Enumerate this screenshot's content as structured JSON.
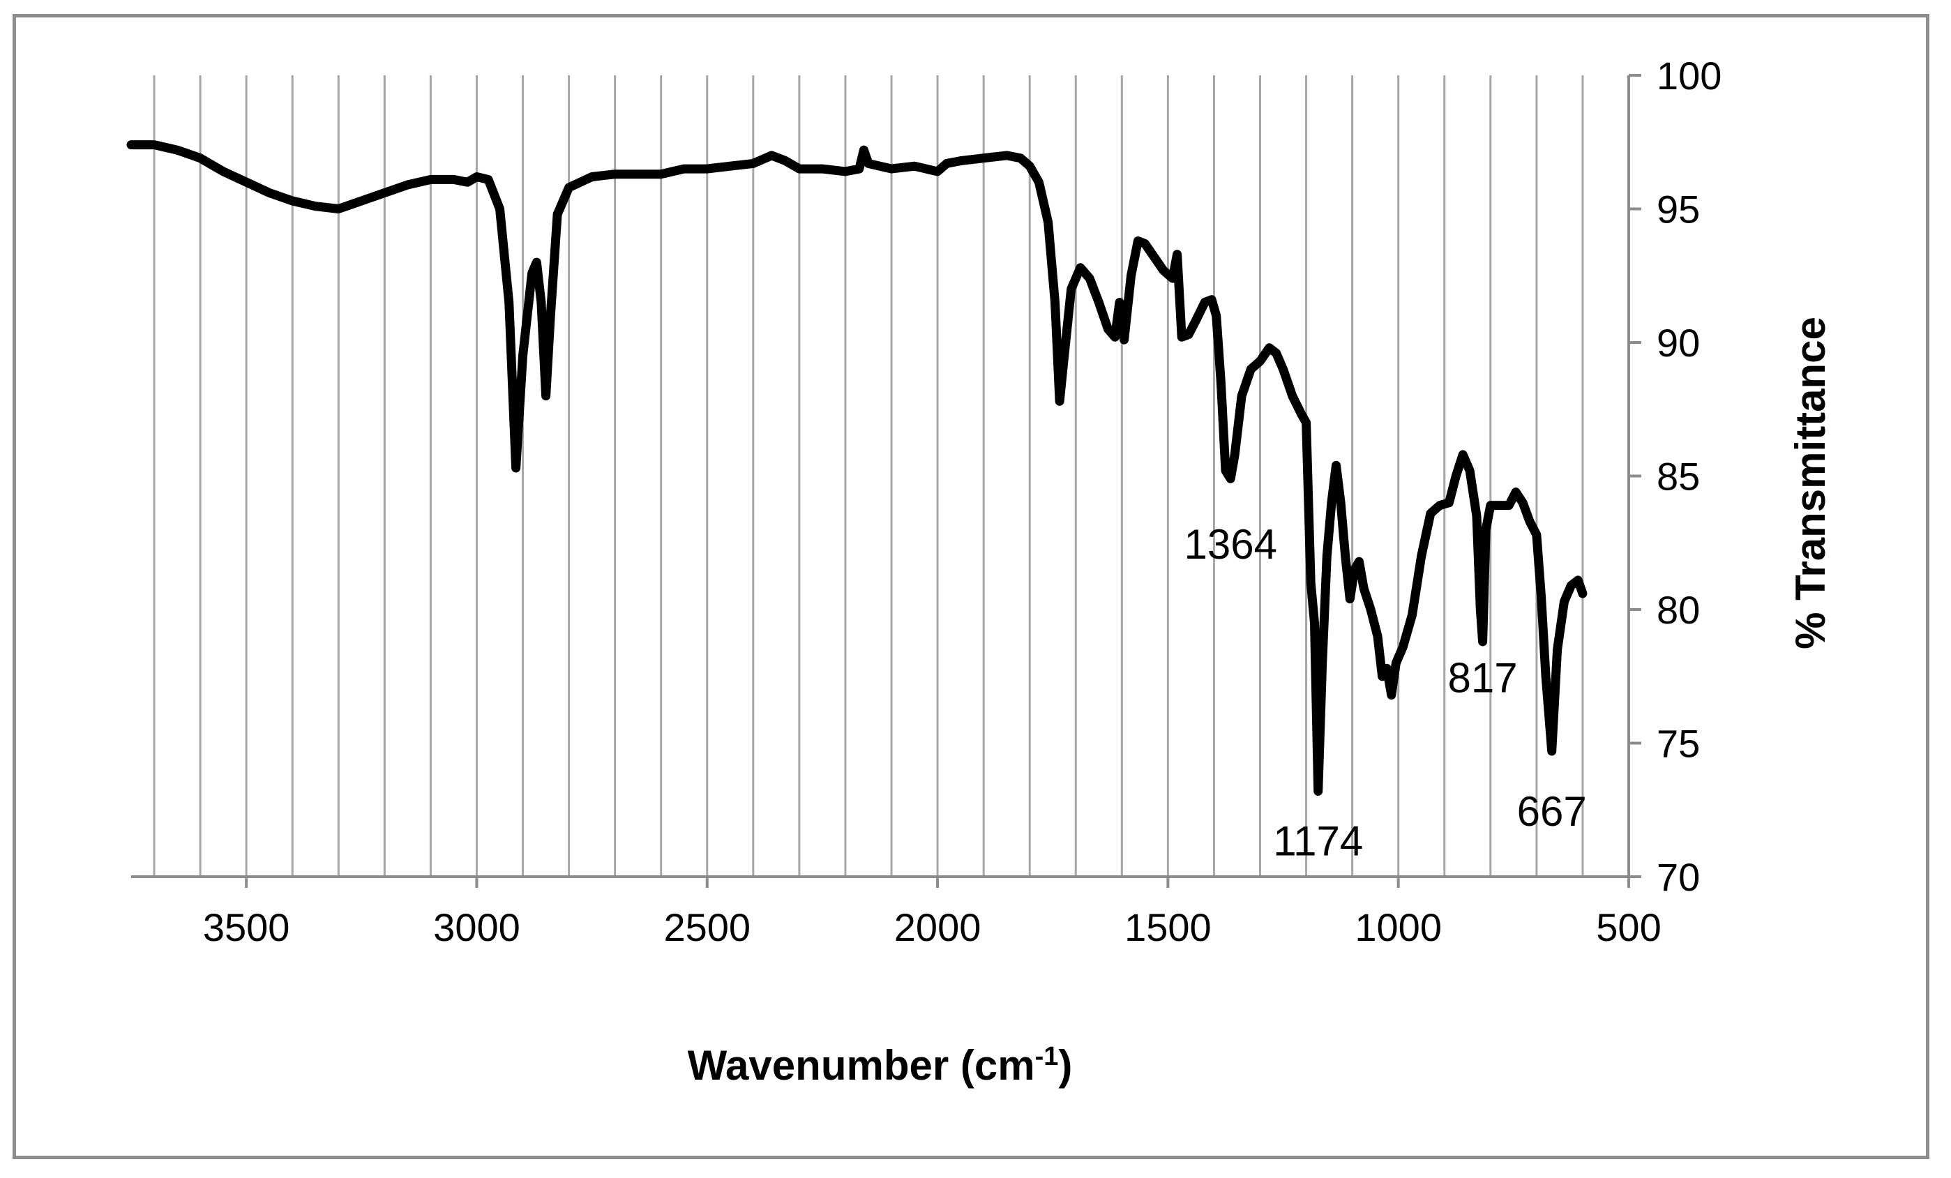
{
  "chart_data": {
    "type": "line",
    "xlabel": "Wavenumber (cm",
    "xlabel_superscript": "-1",
    "xlabel_suffix": ")",
    "ylabel": "% Transmittance",
    "xlim": [
      3750,
      500
    ],
    "ylim": [
      70,
      100
    ],
    "x_reversed": true,
    "grid": "vertical",
    "x_ticks": [
      3500,
      3000,
      2500,
      2000,
      1500,
      1000,
      500
    ],
    "y_ticks": [
      70,
      75,
      80,
      85,
      90,
      95,
      100
    ],
    "y_axis_side": "right",
    "annotations": [
      {
        "text": "1364",
        "x": 1364,
        "y": 81.9
      },
      {
        "text": "1174",
        "x": 1174,
        "y": 70.8
      },
      {
        "text": "817",
        "x": 817,
        "y": 76.9
      },
      {
        "text": "667",
        "x": 667,
        "y": 71.9
      }
    ],
    "series": [
      {
        "color": "#000000",
        "points": [
          [
            3750,
            97.4
          ],
          [
            3700,
            97.4
          ],
          [
            3650,
            97.2
          ],
          [
            3600,
            96.9
          ],
          [
            3550,
            96.4
          ],
          [
            3500,
            96.0
          ],
          [
            3450,
            95.6
          ],
          [
            3400,
            95.3
          ],
          [
            3350,
            95.1
          ],
          [
            3300,
            95.0
          ],
          [
            3250,
            95.3
          ],
          [
            3200,
            95.6
          ],
          [
            3150,
            95.9
          ],
          [
            3100,
            96.1
          ],
          [
            3050,
            96.1
          ],
          [
            3020,
            96.0
          ],
          [
            3000,
            96.2
          ],
          [
            2975,
            96.1
          ],
          [
            2950,
            95.0
          ],
          [
            2930,
            91.5
          ],
          [
            2915,
            85.3
          ],
          [
            2900,
            89.5
          ],
          [
            2880,
            92.6
          ],
          [
            2870,
            93.0
          ],
          [
            2860,
            91.5
          ],
          [
            2850,
            88.0
          ],
          [
            2840,
            91.0
          ],
          [
            2825,
            94.8
          ],
          [
            2800,
            95.8
          ],
          [
            2750,
            96.2
          ],
          [
            2700,
            96.3
          ],
          [
            2650,
            96.3
          ],
          [
            2600,
            96.3
          ],
          [
            2550,
            96.5
          ],
          [
            2500,
            96.5
          ],
          [
            2450,
            96.6
          ],
          [
            2400,
            96.7
          ],
          [
            2360,
            97.0
          ],
          [
            2330,
            96.8
          ],
          [
            2300,
            96.5
          ],
          [
            2250,
            96.5
          ],
          [
            2200,
            96.4
          ],
          [
            2170,
            96.5
          ],
          [
            2160,
            97.2
          ],
          [
            2150,
            96.7
          ],
          [
            2100,
            96.5
          ],
          [
            2050,
            96.6
          ],
          [
            2000,
            96.4
          ],
          [
            1980,
            96.7
          ],
          [
            1950,
            96.8
          ],
          [
            1900,
            96.9
          ],
          [
            1850,
            97.0
          ],
          [
            1820,
            96.9
          ],
          [
            1800,
            96.6
          ],
          [
            1780,
            96.0
          ],
          [
            1760,
            94.5
          ],
          [
            1745,
            91.5
          ],
          [
            1735,
            87.8
          ],
          [
            1725,
            89.5
          ],
          [
            1710,
            92.0
          ],
          [
            1690,
            92.8
          ],
          [
            1670,
            92.4
          ],
          [
            1650,
            91.5
          ],
          [
            1630,
            90.5
          ],
          [
            1615,
            90.2
          ],
          [
            1605,
            91.5
          ],
          [
            1595,
            90.1
          ],
          [
            1580,
            92.5
          ],
          [
            1565,
            93.8
          ],
          [
            1550,
            93.7
          ],
          [
            1530,
            93.2
          ],
          [
            1510,
            92.7
          ],
          [
            1490,
            92.4
          ],
          [
            1480,
            93.3
          ],
          [
            1470,
            90.2
          ],
          [
            1455,
            90.3
          ],
          [
            1440,
            90.8
          ],
          [
            1420,
            91.5
          ],
          [
            1405,
            91.6
          ],
          [
            1395,
            91.0
          ],
          [
            1385,
            88.5
          ],
          [
            1375,
            85.2
          ],
          [
            1364,
            84.9
          ],
          [
            1355,
            85.8
          ],
          [
            1340,
            88.0
          ],
          [
            1320,
            89.0
          ],
          [
            1300,
            89.3
          ],
          [
            1280,
            89.8
          ],
          [
            1265,
            89.6
          ],
          [
            1250,
            89.0
          ],
          [
            1230,
            88.0
          ],
          [
            1210,
            87.3
          ],
          [
            1200,
            87.0
          ],
          [
            1190,
            81.0
          ],
          [
            1182,
            79.5
          ],
          [
            1174,
            73.2
          ],
          [
            1165,
            78.0
          ],
          [
            1155,
            82.0
          ],
          [
            1145,
            84.0
          ],
          [
            1135,
            85.4
          ],
          [
            1125,
            84.0
          ],
          [
            1115,
            82.0
          ],
          [
            1105,
            80.4
          ],
          [
            1095,
            81.5
          ],
          [
            1085,
            81.8
          ],
          [
            1075,
            80.8
          ],
          [
            1060,
            80.0
          ],
          [
            1045,
            79.0
          ],
          [
            1035,
            77.5
          ],
          [
            1025,
            77.8
          ],
          [
            1015,
            76.8
          ],
          [
            1005,
            78.0
          ],
          [
            990,
            78.6
          ],
          [
            970,
            79.8
          ],
          [
            950,
            82.0
          ],
          [
            930,
            83.6
          ],
          [
            910,
            83.9
          ],
          [
            890,
            84.0
          ],
          [
            875,
            85.0
          ],
          [
            860,
            85.8
          ],
          [
            845,
            85.2
          ],
          [
            830,
            83.5
          ],
          [
            822,
            80.0
          ],
          [
            817,
            78.8
          ],
          [
            810,
            83.0
          ],
          [
            800,
            83.9
          ],
          [
            780,
            83.9
          ],
          [
            760,
            83.9
          ],
          [
            745,
            84.4
          ],
          [
            730,
            84.0
          ],
          [
            715,
            83.3
          ],
          [
            700,
            82.8
          ],
          [
            690,
            80.5
          ],
          [
            680,
            77.5
          ],
          [
            667,
            74.7
          ],
          [
            655,
            78.5
          ],
          [
            640,
            80.3
          ],
          [
            625,
            80.9
          ],
          [
            610,
            81.1
          ],
          [
            600,
            80.6
          ]
        ]
      }
    ]
  }
}
